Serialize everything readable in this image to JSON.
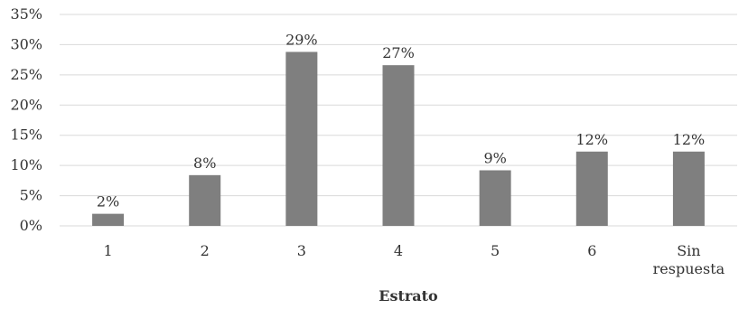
{
  "chart_data": {
    "type": "bar",
    "categories": [
      [
        "1"
      ],
      [
        "2"
      ],
      [
        "3"
      ],
      [
        "4"
      ],
      [
        "5"
      ],
      [
        "6"
      ],
      [
        "Sin",
        "respuesta"
      ]
    ],
    "values": [
      2,
      8.4,
      28.8,
      26.6,
      9.2,
      12.3,
      12.3
    ],
    "data_labels": [
      "2%",
      "8%",
      "29%",
      "27%",
      "9%",
      "12%",
      "12%"
    ],
    "y_ticks": [
      "0%",
      "5%",
      "10%",
      "15%",
      "20%",
      "25%",
      "30%",
      "35%"
    ],
    "ylim": [
      0,
      35
    ],
    "xlabel": "Estrato",
    "ylabel": "",
    "title": "",
    "grid": true,
    "legend": "none",
    "bar_color": "#7f7f7f"
  }
}
